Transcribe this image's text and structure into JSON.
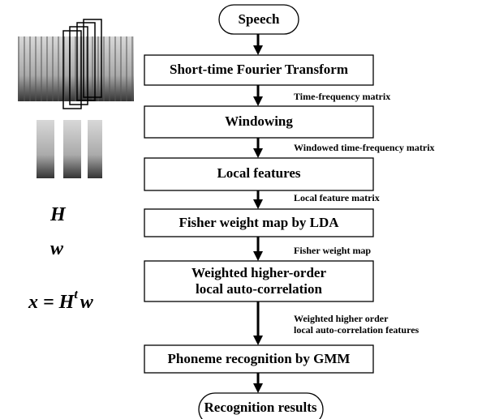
{
  "nodes": [
    {
      "label": "Speech"
    },
    {
      "label": "Short-time Fourier Transform"
    },
    {
      "label": "Windowing"
    },
    {
      "label": "Local features"
    },
    {
      "label": "Fisher weight map by LDA"
    },
    {
      "label": "Weighted higher-order",
      "label2": "local auto-correlation"
    },
    {
      "label": "Phoneme recognition by GMM"
    },
    {
      "label": "Recognition results"
    }
  ],
  "edges": [
    {
      "label": "Time-frequency matrix"
    },
    {
      "label": "Windowed time-frequency matrix"
    },
    {
      "label": "Local feature matrix"
    },
    {
      "label": "Fisher weight map"
    },
    {
      "label": "Weighted higher order",
      "label2": "local auto-correlation features"
    }
  ],
  "side": {
    "h": "H",
    "w": "w",
    "formula": {
      "lhs": "x = H",
      "sup": "t",
      "rhs": "w"
    }
  }
}
